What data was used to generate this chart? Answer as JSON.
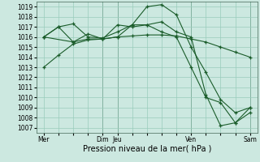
{
  "bg_color": "#cce8e0",
  "grid_color": "#99ccbb",
  "line_color": "#1a5c2a",
  "ylim": [
    1006.5,
    1019.5
  ],
  "yticks": [
    1007,
    1008,
    1009,
    1010,
    1011,
    1012,
    1013,
    1014,
    1015,
    1016,
    1017,
    1018,
    1019
  ],
  "xlabel": "Pression niveau de la mer( hPa )",
  "xtick_labels": [
    "Mer",
    "Dim",
    "Jeu",
    "Ven",
    "Sam"
  ],
  "xtick_pos": [
    0,
    4,
    5,
    10,
    14
  ],
  "series": [
    {
      "x": [
        0,
        1,
        2,
        3,
        4,
        5,
        6,
        7,
        8,
        9,
        10,
        11,
        12,
        13,
        14
      ],
      "y": [
        1013.0,
        1014.2,
        1015.3,
        1015.7,
        1015.8,
        1016.0,
        1016.1,
        1016.2,
        1016.2,
        1016.1,
        1015.8,
        1015.5,
        1015.0,
        1014.5,
        1014.0
      ]
    },
    {
      "x": [
        0,
        1,
        2,
        3,
        4,
        5,
        6,
        7,
        8,
        9,
        10,
        11,
        12,
        13,
        14
      ],
      "y": [
        1016.0,
        1017.0,
        1017.3,
        1016.0,
        1015.9,
        1016.5,
        1017.2,
        1017.2,
        1016.5,
        1016.0,
        1013.0,
        1010.0,
        1009.5,
        1007.5,
        1008.5
      ]
    },
    {
      "x": [
        0,
        1,
        2,
        3,
        4,
        5,
        6,
        7,
        8,
        9,
        10,
        11,
        12,
        13,
        14
      ],
      "y": [
        1016.0,
        1017.0,
        1015.5,
        1015.8,
        1015.8,
        1016.0,
        1017.2,
        1019.0,
        1019.2,
        1018.2,
        1015.0,
        1012.5,
        1009.8,
        1008.5,
        1009.0
      ]
    },
    {
      "x": [
        0,
        2,
        3,
        4,
        5,
        6,
        7,
        8,
        9,
        10,
        11,
        12,
        13,
        14
      ],
      "y": [
        1016.0,
        1015.5,
        1016.3,
        1015.8,
        1017.2,
        1017.0,
        1017.2,
        1017.5,
        1016.5,
        1016.0,
        1010.3,
        1007.2,
        1007.5,
        1009.0
      ]
    }
  ],
  "vline_positions": [
    4,
    5,
    10,
    14
  ],
  "vline_color": "#557766",
  "tick_fontsize": 5.5,
  "xlabel_fontsize": 7,
  "marker_size": 3,
  "linewidth": 0.8
}
